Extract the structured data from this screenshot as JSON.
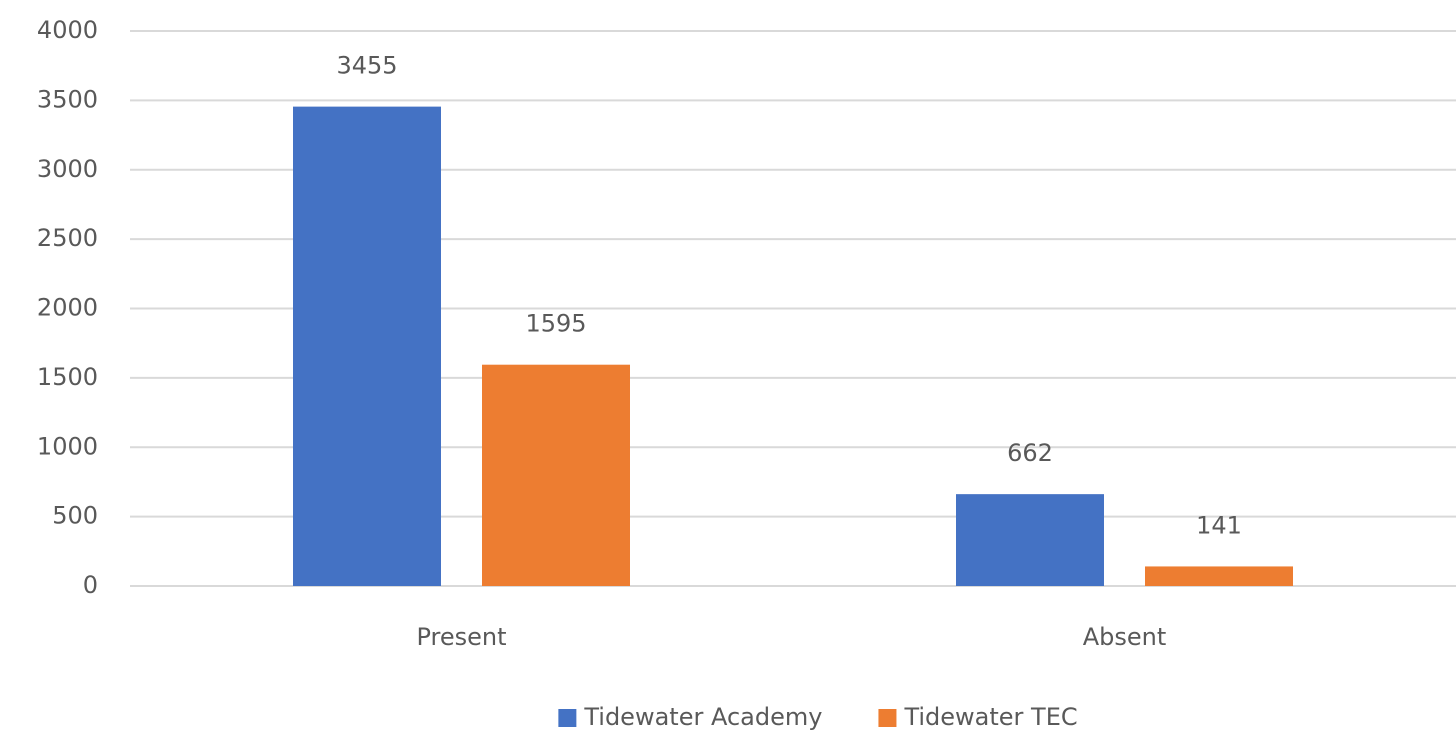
{
  "chart_data": {
    "type": "bar",
    "categories": [
      "Present",
      "Absent"
    ],
    "series": [
      {
        "name": "Tidewater Academy",
        "color": "#4472c4",
        "values": [
          3455,
          662
        ]
      },
      {
        "name": "Tidewater TEC",
        "color": "#ed7d31",
        "values": [
          1595,
          141
        ]
      }
    ],
    "ylim": [
      0,
      4000
    ],
    "yticks": [
      0,
      500,
      1000,
      1500,
      2000,
      2500,
      3000,
      3500,
      4000
    ],
    "grid": true,
    "legend": "bottom"
  }
}
